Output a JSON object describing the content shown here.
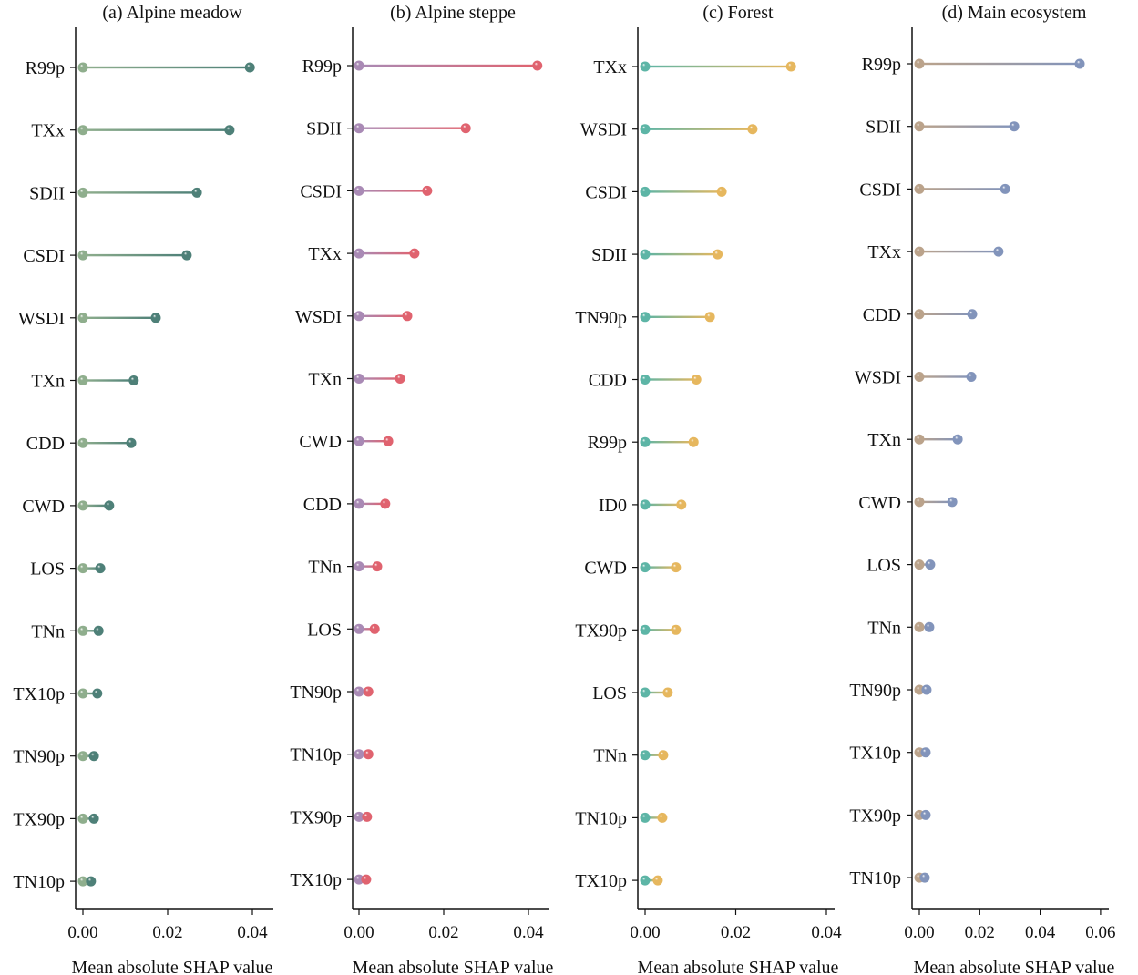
{
  "chart_data": [
    {
      "type": "lollipop",
      "title": "(a) Alpine meadow",
      "xlabel": "Mean absolute SHAP value",
      "xticks": [
        "0.00",
        "0.02",
        "0.04"
      ],
      "xlim": [
        0,
        0.046
      ],
      "colors": {
        "start": "#8fae8d",
        "end": "#4e8078"
      },
      "categories": [
        "R99p",
        "TXx",
        "SDII",
        "CSDI",
        "WSDI",
        "TXn",
        "CDD",
        "CWD",
        "LOS",
        "TNn",
        "TX10p",
        "TN90p",
        "TX90p",
        "TN10p"
      ],
      "values": [
        0.0394,
        0.0346,
        0.0269,
        0.0245,
        0.0172,
        0.012,
        0.0114,
        0.0062,
        0.0041,
        0.0037,
        0.0034,
        0.0026,
        0.0026,
        0.0019
      ]
    },
    {
      "type": "lollipop",
      "title": "(b) Alpine steppe",
      "xlabel": "Mean absolute SHAP value",
      "xticks": [
        "0.00",
        "0.02",
        "0.04"
      ],
      "xlim": [
        0,
        0.046
      ],
      "colors": {
        "start": "#a98ab5",
        "end": "#e0636f"
      },
      "categories": [
        "R99p",
        "SDII",
        "CSDI",
        "TXx",
        "WSDI",
        "TXn",
        "CWD",
        "CDD",
        "TNn",
        "LOS",
        "TN90p",
        "TN10p",
        "TX90p",
        "TX10p"
      ],
      "values": [
        0.0421,
        0.0252,
        0.0161,
        0.0131,
        0.0114,
        0.0097,
        0.0069,
        0.0062,
        0.0043,
        0.0037,
        0.0022,
        0.0022,
        0.0019,
        0.0017
      ]
    },
    {
      "type": "lollipop",
      "title": "(c) Forest",
      "xlabel": "Mean absolute SHAP value",
      "xticks": [
        "0.00",
        "0.02",
        "0.04"
      ],
      "xlim": [
        0,
        0.042
      ],
      "colors": {
        "start": "#5db5a6",
        "end": "#e6b75e"
      },
      "categories": [
        "TXx",
        "WSDI",
        "CSDI",
        "SDII",
        "TN90p",
        "CDD",
        "R99p",
        "ID0",
        "CWD",
        "TX90p",
        "LOS",
        "TNn",
        "TN10p",
        "TX10p"
      ],
      "values": [
        0.0322,
        0.0237,
        0.0169,
        0.016,
        0.0143,
        0.0113,
        0.0107,
        0.008,
        0.0068,
        0.0068,
        0.005,
        0.004,
        0.0038,
        0.0028
      ]
    },
    {
      "type": "lollipop",
      "title": "(d) Main ecosystem",
      "xlabel": "Mean absolute SHAP value",
      "xticks": [
        "0.00",
        "0.02",
        "0.04",
        "0.06"
      ],
      "xlim": [
        0,
        0.062
      ],
      "colors": {
        "start": "#bba38b",
        "end": "#8294bb"
      },
      "categories": [
        "R99p",
        "SDII",
        "CSDI",
        "TXx",
        "CDD",
        "WSDI",
        "TXn",
        "CWD",
        "LOS",
        "TNn",
        "TN90p",
        "TX10p",
        "TX90p",
        "TN10p"
      ],
      "values": [
        0.0531,
        0.0314,
        0.0284,
        0.0262,
        0.0175,
        0.0172,
        0.0127,
        0.0109,
        0.0036,
        0.0033,
        0.0024,
        0.0021,
        0.0021,
        0.0018
      ]
    }
  ]
}
